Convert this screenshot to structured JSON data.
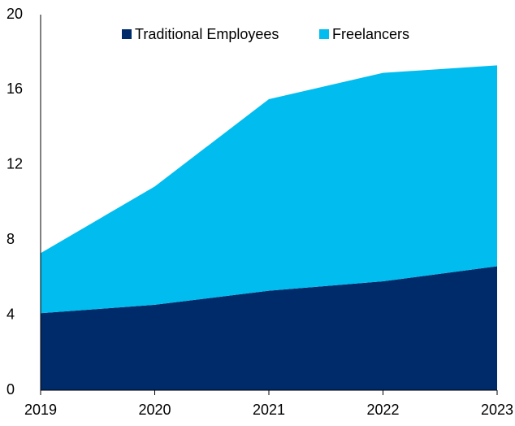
{
  "chart_data": {
    "type": "area",
    "stacked": true,
    "categories": [
      "2019",
      "2020",
      "2021",
      "2022",
      "2023"
    ],
    "series": [
      {
        "name": "Traditional Employees",
        "color": "#002b6b",
        "values": [
          4.1,
          4.55,
          5.3,
          5.8,
          6.6
        ]
      },
      {
        "name": "Freelancers",
        "color": "#00bcef",
        "values": [
          3.2,
          6.3,
          10.2,
          11.1,
          10.7
        ]
      }
    ],
    "ylim": [
      0,
      20
    ],
    "yticks": [
      0,
      4,
      8,
      12,
      16,
      20
    ],
    "legend": "top"
  }
}
